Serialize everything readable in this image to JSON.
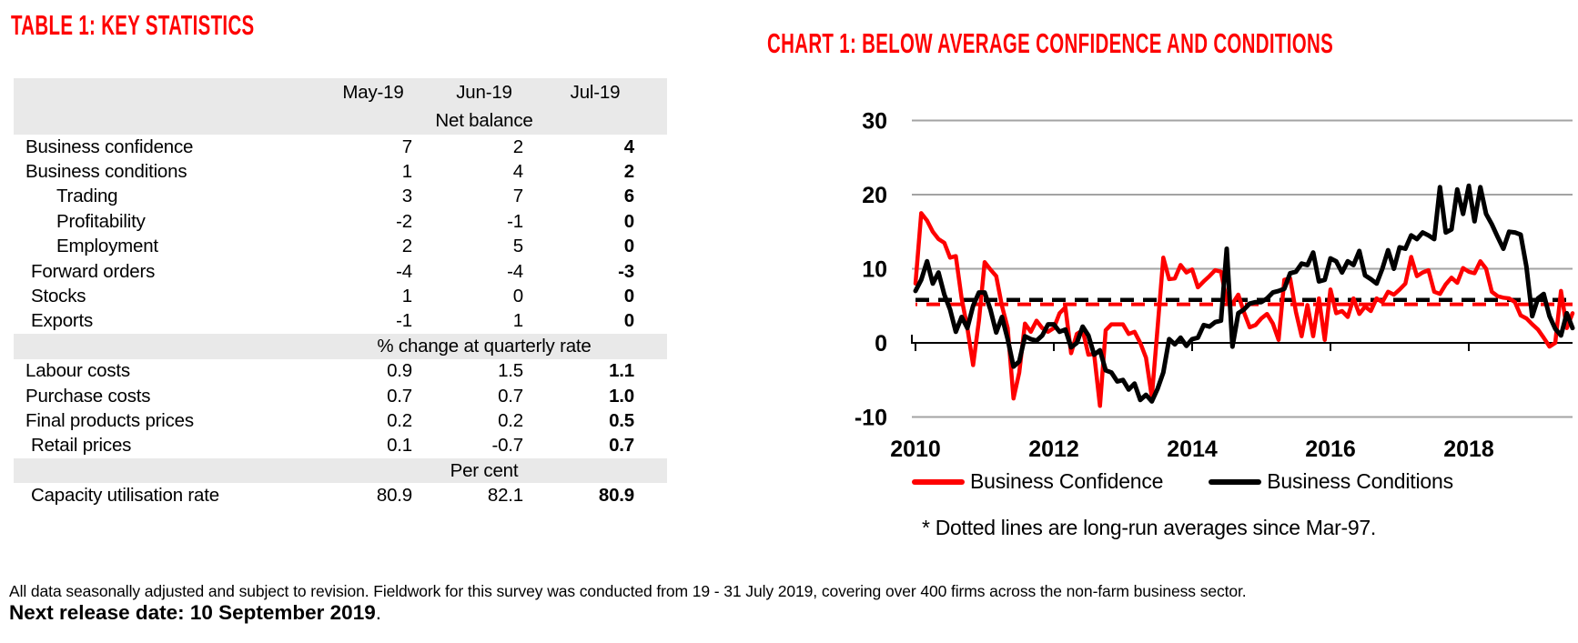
{
  "accent_red": "#fe0000",
  "table": {
    "title": "TABLE 1: KEY STATISTICS",
    "col_headers": [
      "May-19",
      "Jun-19",
      "Jul-19"
    ],
    "band_net_balance": "Net balance",
    "band_pct_change": "% change at quarterly rate",
    "band_per_cent": "Per cent",
    "rows": [
      {
        "label": "Business confidence",
        "may": "7",
        "jun": "2",
        "jul": "4"
      },
      {
        "label": "Business conditions",
        "may": "1",
        "jun": "4",
        "jul": "2"
      },
      {
        "label": "Trading",
        "may": "3",
        "jun": "7",
        "jul": "6"
      },
      {
        "label": "Profitability",
        "may": "-2",
        "jun": "-1",
        "jul": "0"
      },
      {
        "label": "Employment",
        "may": "2",
        "jun": "5",
        "jul": "0"
      },
      {
        "label": "Forward orders",
        "may": "-4",
        "jun": "-4",
        "jul": "-3"
      },
      {
        "label": "Stocks",
        "may": "1",
        "jun": "0",
        "jul": "0"
      },
      {
        "label": "Exports",
        "may": "-1",
        "jun": "1",
        "jul": "0"
      },
      {
        "label": "Labour costs",
        "may": "0.9",
        "jun": "1.5",
        "jul": "1.1"
      },
      {
        "label": "Purchase costs",
        "may": "0.7",
        "jun": "0.7",
        "jul": "1.0"
      },
      {
        "label": "Final products prices",
        "may": "0.2",
        "jun": "0.2",
        "jul": "0.5"
      },
      {
        "label": "Retail prices",
        "may": "0.1",
        "jun": "-0.7",
        "jul": "0.7"
      },
      {
        "label": "Capacity utilisation rate",
        "may": "80.9",
        "jun": "82.1",
        "jul": "80.9"
      }
    ]
  },
  "chart_data": {
    "type": "line",
    "title": "CHART 1: BELOW AVERAGE CONFIDENCE AND CONDITIONS",
    "x_start": 2010.0,
    "x_step_months": 1,
    "x_ticks": [
      2010,
      2012,
      2014,
      2016,
      2018
    ],
    "y_ticks": [
      30,
      20,
      10,
      0,
      -10
    ],
    "ylim": [
      -13,
      33
    ],
    "grid_color": "#a3a3a3",
    "legend_position": "bottom",
    "footnote": "* Dotted lines are long-run averages since Mar-97.",
    "series": [
      {
        "name": "Business Confidence",
        "color": "#fe0000",
        "long_run_avg": 5.5,
        "values": [
          8,
          17.5,
          16.5,
          15,
          14,
          13.5,
          11.5,
          11.7,
          6,
          2,
          -3,
          3,
          10.9,
          9.9,
          9,
          5,
          2,
          -7.5,
          -4,
          2.6,
          1.5,
          3,
          2,
          1.5,
          2,
          4,
          4.8,
          -1.4,
          1.2,
          1.7,
          -1.6,
          -1.5,
          -8.5,
          1.7,
          2.5,
          2.5,
          2.5,
          1.2,
          1.5,
          0,
          -2,
          -7.3,
          2,
          11.5,
          8.6,
          8.7,
          10.5,
          9.5,
          9.9,
          7.5,
          8.3,
          9,
          9.8,
          9.6,
          5.7,
          5.3,
          6.5,
          4.1,
          2.1,
          2.4,
          3.3,
          3.9,
          2.6,
          0.4,
          8.5,
          8.7,
          4.2,
          0.9,
          5.1,
          0.9,
          6,
          0.4,
          7.2,
          4,
          4.3,
          3.5,
          6,
          3.9,
          4.9,
          4.3,
          6,
          5.5,
          6.9,
          6.5,
          7.2,
          8,
          11.6,
          9,
          9.5,
          9.8,
          6.9,
          6.6,
          7.9,
          8.8,
          8.1,
          10.1,
          9.6,
          9.4,
          11,
          10,
          6.9,
          6.3,
          6.1,
          6,
          5.5,
          3.7,
          3.3,
          2.5,
          1.8,
          0.7,
          -0.5,
          0,
          7,
          2,
          4
        ]
      },
      {
        "name": "Business Conditions",
        "color": "#000000",
        "long_run_avg": 5.8,
        "values": [
          7,
          8.5,
          11,
          8,
          9.5,
          6.5,
          4.5,
          1.5,
          3.5,
          2,
          5,
          6.8,
          6.8,
          4.5,
          1.4,
          3.5,
          0.5,
          -3.2,
          -2.5,
          0.9,
          0.5,
          0.3,
          1,
          2.5,
          2.5,
          1.5,
          1.8,
          -0.6,
          0,
          2.2,
          1,
          -1.6,
          -1,
          -3.7,
          -4,
          -5.2,
          -5,
          -6.3,
          -5.5,
          -7.7,
          -7,
          -7.9,
          -6.2,
          -4,
          0.5,
          -0.2,
          0.7,
          -0.4,
          0.5,
          0.7,
          2.4,
          2.2,
          2.8,
          3,
          12.7,
          -0.5,
          4,
          4.5,
          5.3,
          5.5,
          5.5,
          6,
          6.8,
          7,
          7.3,
          9.4,
          9.6,
          10.7,
          10.5,
          12.2,
          8.3,
          8.5,
          11.4,
          11,
          9.5,
          11,
          10.5,
          12.4,
          9.1,
          8.6,
          8,
          10,
          12.5,
          10,
          12.9,
          12.7,
          14.5,
          14,
          14.9,
          14.5,
          14,
          21,
          14.9,
          15.3,
          20.7,
          17.4,
          21.2,
          16.4,
          21,
          17.4,
          16,
          14.3,
          12.7,
          15,
          14.9,
          14.6,
          10.3,
          3.6,
          6,
          6.6,
          3.6,
          1.9,
          1,
          4,
          2
        ]
      }
    ]
  },
  "footer": {
    "note": "All data seasonally adjusted and subject to revision. Fieldwork for this survey was conducted from 19 - 31 July 2019, covering over 400 firms across the non-farm business sector.",
    "release_text": "Next release date: 10 September 2019",
    "release_suffix": "."
  }
}
